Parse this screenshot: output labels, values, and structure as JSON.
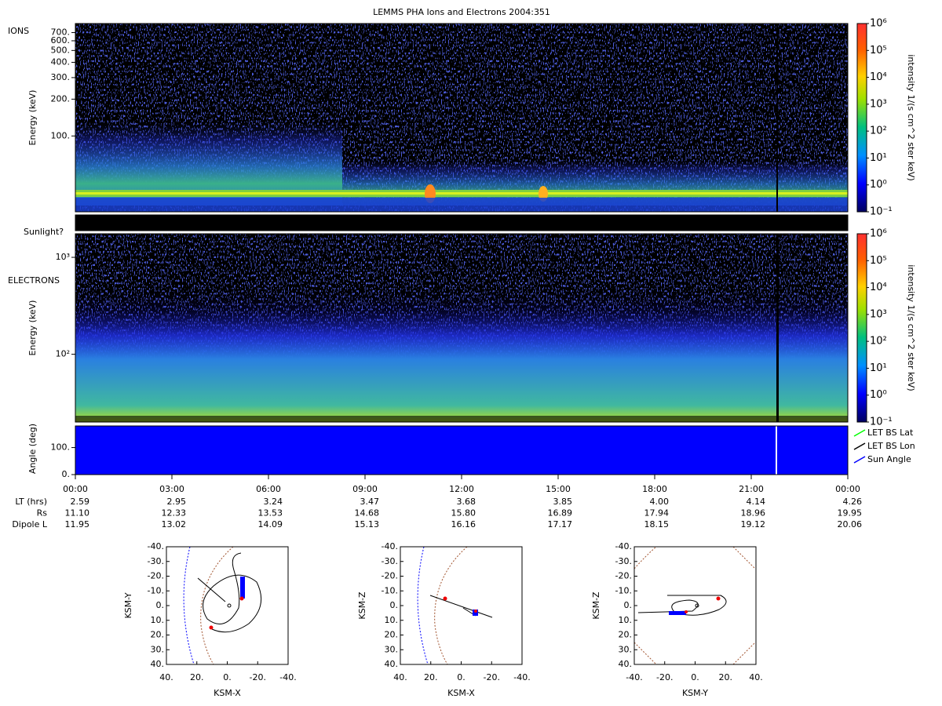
{
  "chart_data": [
    {
      "type": "spectrogram",
      "title": "LEMMS PHA Ions and Electrons  2004:351",
      "panel_label": "IONS",
      "ylabel": "Energy (keV)",
      "ylog": true,
      "ylim": [
        24,
        830
      ],
      "yticks": [
        {
          "value": 100,
          "label": "100."
        },
        {
          "value": 200,
          "label": "200."
        },
        {
          "value": 300,
          "label": "300."
        },
        {
          "value": 400,
          "label": "400."
        },
        {
          "value": 500,
          "label": "500."
        },
        {
          "value": 600,
          "label": "600."
        },
        {
          "value": 700,
          "label": "700."
        }
      ],
      "colorbar_label": "intensity 1/(s cm^2 ster keV)",
      "colorbar_lim": [
        0.1,
        1000000
      ],
      "colorbar_ticks": [
        {
          "value": 0.1,
          "label": "10⁻¹"
        },
        {
          "value": 1,
          "label": "10⁰"
        },
        {
          "value": 10,
          "label": "10¹"
        },
        {
          "value": 100,
          "label": "10²"
        },
        {
          "value": 1000,
          "label": "10³"
        },
        {
          "value": 10000,
          "label": "10⁴"
        },
        {
          "value": 100000,
          "label": "10⁵"
        },
        {
          "value": 1000000,
          "label": "10⁶"
        }
      ]
    },
    {
      "type": "flag",
      "ylabel": "Sunlight?"
    },
    {
      "type": "spectrogram",
      "panel_label": "ELECTRONS",
      "ylabel": "Energy (keV)",
      "ylog": true,
      "ylim": [
        20,
        1750
      ],
      "yticks": [
        {
          "value": 100,
          "label": "10²"
        },
        {
          "value": 1000,
          "label": "10³"
        }
      ],
      "colorbar_label": "intensity 1/(s cm^2 ster keV)",
      "colorbar_lim": [
        0.1,
        1000000
      ],
      "colorbar_ticks": [
        {
          "value": 0.1,
          "label": "10⁻¹"
        },
        {
          "value": 1,
          "label": "10⁰"
        },
        {
          "value": 10,
          "label": "10¹"
        },
        {
          "value": 100,
          "label": "10²"
        },
        {
          "value": 1000,
          "label": "10³"
        },
        {
          "value": 10000,
          "label": "10⁴"
        },
        {
          "value": 100000,
          "label": "10⁵"
        },
        {
          "value": 1000000,
          "label": "10⁶"
        }
      ]
    },
    {
      "type": "line",
      "ylabel": "Angle (deg)",
      "ylim": [
        0,
        180
      ],
      "yticks": [
        {
          "value": 0,
          "label": "0."
        },
        {
          "value": 100,
          "label": "100."
        }
      ],
      "series": [
        {
          "name": "LET BS Lat",
          "color": "#00ff00"
        },
        {
          "name": "LET BS Lon",
          "color": "#000000"
        },
        {
          "name": "Sun Angle",
          "color": "#0000ff"
        }
      ],
      "categories": [
        "00:00",
        "03:00",
        "06:00",
        "09:00",
        "12:00",
        "15:00",
        "18:00",
        "21:00",
        "00:00"
      ],
      "ephemeris": [
        {
          "label": "LT (hrs)",
          "values": [
            "2.59",
            "2.95",
            "3.24",
            "3.47",
            "3.68",
            "3.85",
            "4.00",
            "4.14",
            "4.26"
          ]
        },
        {
          "label": "Rs",
          "values": [
            "11.10",
            "12.33",
            "13.53",
            "14.68",
            "15.80",
            "16.89",
            "17.94",
            "18.96",
            "19.95"
          ]
        },
        {
          "label": "Dipole L",
          "values": [
            "11.95",
            "13.02",
            "14.09",
            "15.13",
            "16.16",
            "17.17",
            "18.15",
            "19.12",
            "20.06"
          ]
        }
      ]
    },
    {
      "type": "orbit",
      "xlabel": "KSM-X",
      "ylabel": "KSM-Y",
      "xlim": [
        40,
        -40
      ],
      "ylim": [
        40,
        -40
      ],
      "xticks": [
        {
          "value": 40,
          "label": "40."
        },
        {
          "value": 20,
          "label": "20."
        },
        {
          "value": 0,
          "label": "0."
        },
        {
          "value": -20,
          "label": "-20."
        },
        {
          "value": -40,
          "label": "-40."
        }
      ],
      "yticks": [
        {
          "value": -40,
          "label": "-40."
        },
        {
          "value": -30,
          "label": "-30."
        },
        {
          "value": -20,
          "label": "-20."
        },
        {
          "value": -10,
          "label": "-10."
        },
        {
          "value": 0,
          "label": "0."
        },
        {
          "value": 10,
          "label": "10."
        },
        {
          "value": 20,
          "label": "20."
        },
        {
          "value": 30,
          "label": "30."
        },
        {
          "value": 40,
          "label": "40."
        }
      ]
    },
    {
      "type": "orbit",
      "xlabel": "KSM-X",
      "ylabel": "KSM-Z",
      "xlim": [
        40,
        -40
      ],
      "ylim": [
        40,
        -40
      ],
      "xticks": [
        {
          "value": 40,
          "label": "40."
        },
        {
          "value": 20,
          "label": "20."
        },
        {
          "value": 0,
          "label": "0."
        },
        {
          "value": -20,
          "label": "-20."
        },
        {
          "value": -40,
          "label": "-40."
        }
      ],
      "yticks": [
        {
          "value": -40,
          "label": "-40."
        },
        {
          "value": -30,
          "label": "-30."
        },
        {
          "value": -20,
          "label": "-20."
        },
        {
          "value": -10,
          "label": "-10."
        },
        {
          "value": 0,
          "label": "0."
        },
        {
          "value": 10,
          "label": "10."
        },
        {
          "value": 20,
          "label": "20."
        },
        {
          "value": 30,
          "label": "30."
        },
        {
          "value": 40,
          "label": "40."
        }
      ]
    },
    {
      "type": "orbit",
      "xlabel": "KSM-Y",
      "ylabel": "KSM-Z",
      "xlim": [
        -40,
        40
      ],
      "ylim": [
        40,
        -40
      ],
      "xticks": [
        {
          "value": -40,
          "label": "-40."
        },
        {
          "value": -20,
          "label": "-20."
        },
        {
          "value": 0,
          "label": "0."
        },
        {
          "value": 20,
          "label": "20."
        },
        {
          "value": 40,
          "label": "40."
        }
      ],
      "yticks": [
        {
          "value": -40,
          "label": "-40."
        },
        {
          "value": -30,
          "label": "-30."
        },
        {
          "value": -20,
          "label": "-20."
        },
        {
          "value": -10,
          "label": "-10."
        },
        {
          "value": 0,
          "label": "0."
        },
        {
          "value": 10,
          "label": "10."
        },
        {
          "value": 20,
          "label": "20."
        },
        {
          "value": 30,
          "label": "30."
        },
        {
          "value": 40,
          "label": "40."
        }
      ]
    }
  ]
}
